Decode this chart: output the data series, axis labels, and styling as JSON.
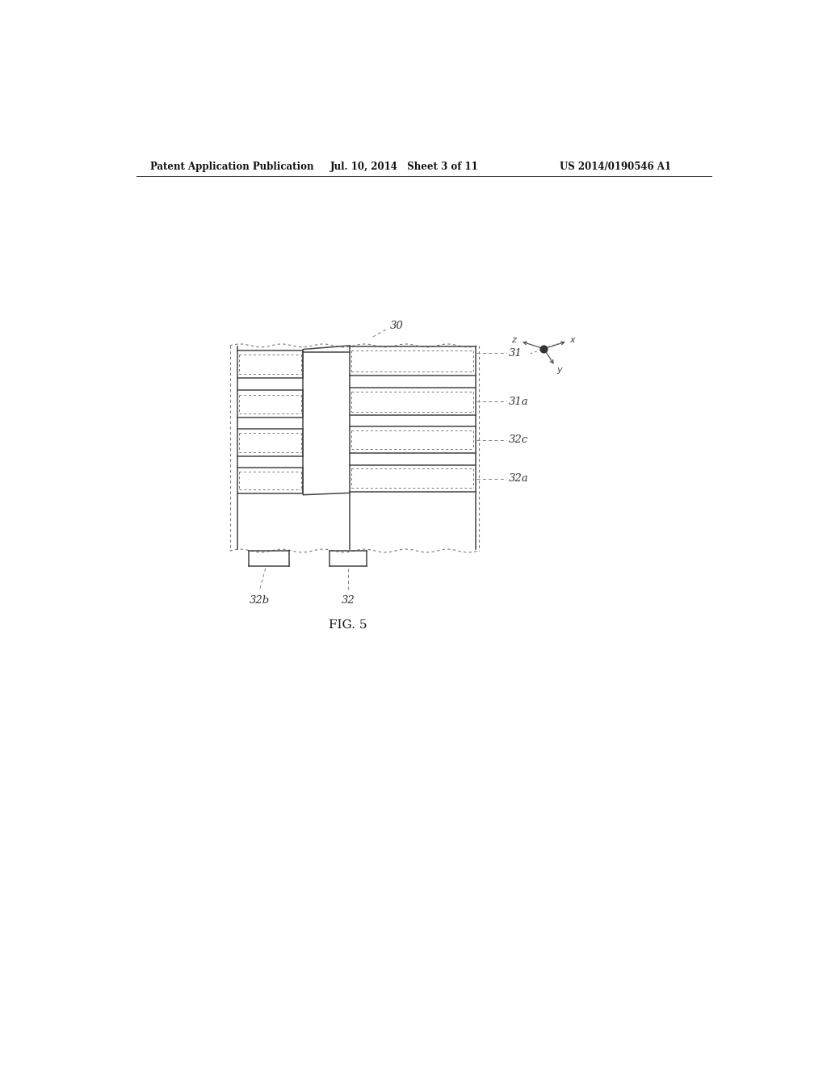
{
  "title_left": "Patent Application Publication",
  "title_mid": "Jul. 10, 2014   Sheet 3 of 11",
  "title_right": "US 2014/0190546 A1",
  "fig_label": "FIG. 5",
  "bg_color": "#ffffff",
  "line_color": "#444444",
  "dot_color": "#777777",
  "label_30": "30",
  "label_31": "31",
  "label_31a": "31a",
  "label_32": "32",
  "label_32a": "32a",
  "label_32b": "32b",
  "label_32c": "32c"
}
